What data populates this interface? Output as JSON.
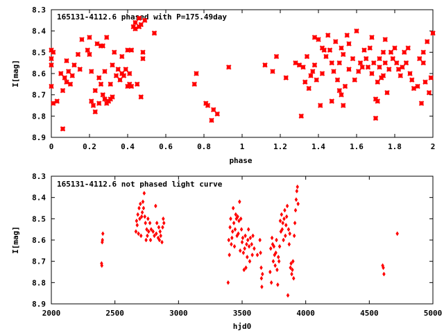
{
  "colors": {
    "points": "#ff0000",
    "axes": "#000000",
    "background": "#ffffff"
  },
  "chart_data": [
    {
      "type": "scatter",
      "title": "165131-4112.6 phased with P=175.49day",
      "xlabel": "phase",
      "ylabel": "I[mag]",
      "xlim": [
        0,
        2
      ],
      "ylim": [
        8.3,
        8.9
      ],
      "y_inverted": true,
      "grid": false,
      "legend": "none",
      "marker": "star",
      "x_ticks": [
        "0",
        "0.2",
        "0.4",
        "0.6",
        "0.8",
        "1",
        "1.2",
        "1.4",
        "1.6",
        "1.8",
        "2"
      ],
      "y_ticks": [
        "8.3",
        "8.4",
        "8.5",
        "8.6",
        "8.7",
        "8.8",
        "8.9"
      ],
      "points": [
        [
          0.0,
          8.49
        ],
        [
          0.0,
          8.53
        ],
        [
          0.0,
          8.56
        ],
        [
          0.0,
          8.66
        ],
        [
          0.01,
          8.5
        ],
        [
          0.01,
          8.74
        ],
        [
          0.03,
          8.73
        ],
        [
          0.05,
          8.6
        ],
        [
          0.06,
          8.86
        ],
        [
          0.06,
          8.68
        ],
        [
          0.07,
          8.62
        ],
        [
          0.08,
          8.54
        ],
        [
          0.08,
          8.64
        ],
        [
          0.09,
          8.59
        ],
        [
          0.1,
          8.65
        ],
        [
          0.11,
          8.61
        ],
        [
          0.12,
          8.56
        ],
        [
          0.14,
          8.51
        ],
        [
          0.15,
          8.58
        ],
        [
          0.16,
          8.44
        ],
        [
          0.19,
          8.49
        ],
        [
          0.2,
          8.43
        ],
        [
          0.2,
          8.51
        ],
        [
          0.21,
          8.59
        ],
        [
          0.21,
          8.73
        ],
        [
          0.22,
          8.75
        ],
        [
          0.23,
          8.68
        ],
        [
          0.23,
          8.78
        ],
        [
          0.24,
          8.46
        ],
        [
          0.25,
          8.74
        ],
        [
          0.25,
          8.62
        ],
        [
          0.26,
          8.47
        ],
        [
          0.26,
          8.65
        ],
        [
          0.27,
          8.47
        ],
        [
          0.27,
          8.7
        ],
        [
          0.28,
          8.72
        ],
        [
          0.28,
          8.59
        ],
        [
          0.29,
          8.74
        ],
        [
          0.29,
          8.43
        ],
        [
          0.3,
          8.73
        ],
        [
          0.31,
          8.72
        ],
        [
          0.31,
          8.65
        ],
        [
          0.32,
          8.71
        ],
        [
          0.32,
          8.56
        ],
        [
          0.33,
          8.5
        ],
        [
          0.34,
          8.61
        ],
        [
          0.35,
          8.58
        ],
        [
          0.36,
          8.63
        ],
        [
          0.37,
          8.6
        ],
        [
          0.37,
          8.52
        ],
        [
          0.38,
          8.61
        ],
        [
          0.39,
          8.58
        ],
        [
          0.4,
          8.66
        ],
        [
          0.4,
          8.49
        ],
        [
          0.41,
          8.65
        ],
        [
          0.41,
          8.6
        ],
        [
          0.42,
          8.66
        ],
        [
          0.42,
          8.49
        ],
        [
          0.43,
          8.38
        ],
        [
          0.44,
          8.39
        ],
        [
          0.44,
          8.36
        ],
        [
          0.45,
          8.65
        ],
        [
          0.46,
          8.38
        ],
        [
          0.46,
          8.34
        ],
        [
          0.47,
          8.37
        ],
        [
          0.47,
          8.71
        ],
        [
          0.48,
          8.5
        ],
        [
          0.48,
          8.53
        ],
        [
          0.49,
          8.35
        ],
        [
          0.54,
          8.41
        ],
        [
          0.75,
          8.65
        ],
        [
          0.76,
          8.6
        ],
        [
          0.81,
          8.74
        ],
        [
          0.82,
          8.75
        ],
        [
          0.84,
          8.82
        ],
        [
          0.85,
          8.77
        ],
        [
          0.87,
          8.79
        ],
        [
          0.93,
          8.57
        ],
        [
          1.12,
          8.56
        ],
        [
          1.16,
          8.59
        ],
        [
          1.18,
          8.52
        ],
        [
          1.23,
          8.62
        ],
        [
          1.28,
          8.55
        ],
        [
          1.3,
          8.56
        ],
        [
          1.31,
          8.8
        ],
        [
          1.32,
          8.57
        ],
        [
          1.33,
          8.64
        ],
        [
          1.34,
          8.52
        ],
        [
          1.35,
          8.67
        ],
        [
          1.36,
          8.61
        ],
        [
          1.37,
          8.59
        ],
        [
          1.38,
          8.43
        ],
        [
          1.38,
          8.56
        ],
        [
          1.39,
          8.63
        ],
        [
          1.4,
          8.44
        ],
        [
          1.41,
          8.75
        ],
        [
          1.42,
          8.48
        ],
        [
          1.42,
          8.6
        ],
        [
          1.43,
          8.49
        ],
        [
          1.44,
          8.52
        ],
        [
          1.45,
          8.42
        ],
        [
          1.46,
          8.49
        ],
        [
          1.47,
          8.73
        ],
        [
          1.47,
          8.55
        ],
        [
          1.48,
          8.59
        ],
        [
          1.49,
          8.45
        ],
        [
          1.5,
          8.63
        ],
        [
          1.51,
          8.68
        ],
        [
          1.51,
          8.55
        ],
        [
          1.52,
          8.7
        ],
        [
          1.52,
          8.48
        ],
        [
          1.53,
          8.75
        ],
        [
          1.53,
          8.51
        ],
        [
          1.54,
          8.66
        ],
        [
          1.55,
          8.42
        ],
        [
          1.56,
          8.46
        ],
        [
          1.56,
          8.58
        ],
        [
          1.58,
          8.53
        ],
        [
          1.59,
          8.63
        ],
        [
          1.6,
          8.4
        ],
        [
          1.61,
          8.59
        ],
        [
          1.62,
          8.55
        ],
        [
          1.63,
          8.57
        ],
        [
          1.64,
          8.49
        ],
        [
          1.65,
          8.53
        ],
        [
          1.66,
          8.57
        ],
        [
          1.67,
          8.48
        ],
        [
          1.68,
          8.43
        ],
        [
          1.68,
          8.6
        ],
        [
          1.69,
          8.55
        ],
        [
          1.7,
          8.72
        ],
        [
          1.7,
          8.81
        ],
        [
          1.71,
          8.73
        ],
        [
          1.71,
          8.64
        ],
        [
          1.72,
          8.57
        ],
        [
          1.72,
          8.53
        ],
        [
          1.73,
          8.62
        ],
        [
          1.74,
          8.61
        ],
        [
          1.74,
          8.5
        ],
        [
          1.75,
          8.44
        ],
        [
          1.75,
          8.55
        ],
        [
          1.76,
          8.69
        ],
        [
          1.77,
          8.58
        ],
        [
          1.78,
          8.5
        ],
        [
          1.79,
          8.53
        ],
        [
          1.8,
          8.48
        ],
        [
          1.81,
          8.55
        ],
        [
          1.82,
          8.58
        ],
        [
          1.83,
          8.61
        ],
        [
          1.84,
          8.57
        ],
        [
          1.85,
          8.5
        ],
        [
          1.86,
          8.55
        ],
        [
          1.87,
          8.48
        ],
        [
          1.88,
          8.6
        ],
        [
          1.89,
          8.63
        ],
        [
          1.9,
          8.67
        ],
        [
          1.92,
          8.66
        ],
        [
          1.93,
          8.53
        ],
        [
          1.94,
          8.74
        ],
        [
          1.95,
          8.5
        ],
        [
          1.95,
          8.55
        ],
        [
          1.96,
          8.64
        ],
        [
          1.97,
          8.45
        ],
        [
          1.98,
          8.69
        ],
        [
          1.99,
          8.62
        ],
        [
          2.0,
          8.41
        ]
      ]
    },
    {
      "type": "scatter",
      "title": "165131-4112.6 not phased light curve",
      "xlabel": "hjd0",
      "ylabel": "I[mag]",
      "xlim": [
        2000,
        5000
      ],
      "ylim": [
        8.3,
        8.9
      ],
      "y_inverted": true,
      "grid": false,
      "legend": "none",
      "marker": "diamond",
      "x_ticks": [
        "2000",
        "2500",
        "3000",
        "3500",
        "4000",
        "4500",
        "5000"
      ],
      "y_ticks": [
        "8.3",
        "8.4",
        "8.5",
        "8.6",
        "8.7",
        "8.8",
        "8.9"
      ],
      "points": [
        [
          2395,
          8.71
        ],
        [
          2397,
          8.72
        ],
        [
          2400,
          8.61
        ],
        [
          2402,
          8.6
        ],
        [
          2405,
          8.57
        ],
        [
          2665,
          8.56
        ],
        [
          2670,
          8.51
        ],
        [
          2675,
          8.53
        ],
        [
          2680,
          8.48
        ],
        [
          2685,
          8.57
        ],
        [
          2690,
          8.45
        ],
        [
          2695,
          8.5
        ],
        [
          2700,
          8.43
        ],
        [
          2705,
          8.58
        ],
        [
          2710,
          8.49
        ],
        [
          2715,
          8.47
        ],
        [
          2720,
          8.42
        ],
        [
          2725,
          8.45
        ],
        [
          2730,
          8.38
        ],
        [
          2735,
          8.49
        ],
        [
          2740,
          8.52
        ],
        [
          2745,
          8.6
        ],
        [
          2750,
          8.55
        ],
        [
          2755,
          8.58
        ],
        [
          2760,
          8.5
        ],
        [
          2765,
          8.56
        ],
        [
          2775,
          8.52
        ],
        [
          2780,
          8.6
        ],
        [
          2785,
          8.55
        ],
        [
          2800,
          8.56
        ],
        [
          2810,
          8.58
        ],
        [
          2820,
          8.44
        ],
        [
          2825,
          8.57
        ],
        [
          2830,
          8.52
        ],
        [
          2840,
          8.59
        ],
        [
          2845,
          8.54
        ],
        [
          2850,
          8.6
        ],
        [
          2855,
          8.56
        ],
        [
          2860,
          8.58
        ],
        [
          2870,
          8.61
        ],
        [
          2875,
          8.54
        ],
        [
          2880,
          8.5
        ],
        [
          2885,
          8.52
        ],
        [
          3390,
          8.8
        ],
        [
          3395,
          8.6
        ],
        [
          3400,
          8.67
        ],
        [
          3405,
          8.54
        ],
        [
          3410,
          8.5
        ],
        [
          3415,
          8.62
        ],
        [
          3420,
          8.59
        ],
        [
          3425,
          8.56
        ],
        [
          3430,
          8.45
        ],
        [
          3435,
          8.52
        ],
        [
          3440,
          8.63
        ],
        [
          3445,
          8.55
        ],
        [
          3450,
          8.48
        ],
        [
          3455,
          8.5
        ],
        [
          3460,
          8.58
        ],
        [
          3465,
          8.49
        ],
        [
          3470,
          8.57
        ],
        [
          3475,
          8.51
        ],
        [
          3480,
          8.42
        ],
        [
          3485,
          8.65
        ],
        [
          3490,
          8.5
        ],
        [
          3495,
          8.55
        ],
        [
          3500,
          8.61
        ],
        [
          3505,
          8.59
        ],
        [
          3510,
          8.66
        ],
        [
          3515,
          8.74
        ],
        [
          3520,
          8.64
        ],
        [
          3525,
          8.58
        ],
        [
          3530,
          8.73
        ],
        [
          3535,
          8.62
        ],
        [
          3540,
          8.68
        ],
        [
          3545,
          8.6
        ],
        [
          3550,
          8.55
        ],
        [
          3555,
          8.63
        ],
        [
          3560,
          8.7
        ],
        [
          3565,
          8.59
        ],
        [
          3575,
          8.62
        ],
        [
          3580,
          8.67
        ],
        [
          3585,
          8.58
        ],
        [
          3595,
          8.64
        ],
        [
          3620,
          8.67
        ],
        [
          3640,
          8.6
        ],
        [
          3645,
          8.66
        ],
        [
          3650,
          8.73
        ],
        [
          3652,
          8.78
        ],
        [
          3655,
          8.82
        ],
        [
          3660,
          8.76
        ],
        [
          3720,
          8.75
        ],
        [
          3725,
          8.64
        ],
        [
          3730,
          8.8
        ],
        [
          3735,
          8.59
        ],
        [
          3740,
          8.62
        ],
        [
          3745,
          8.7
        ],
        [
          3750,
          8.63
        ],
        [
          3755,
          8.67
        ],
        [
          3760,
          8.72
        ],
        [
          3765,
          8.66
        ],
        [
          3770,
          8.6
        ],
        [
          3775,
          8.74
        ],
        [
          3780,
          8.81
        ],
        [
          3785,
          8.68
        ],
        [
          3790,
          8.7
        ],
        [
          3795,
          8.63
        ],
        [
          3800,
          8.51
        ],
        [
          3805,
          8.56
        ],
        [
          3810,
          8.48
        ],
        [
          3815,
          8.55
        ],
        [
          3820,
          8.52
        ],
        [
          3825,
          8.6
        ],
        [
          3830,
          8.5
        ],
        [
          3835,
          8.46
        ],
        [
          3840,
          8.58
        ],
        [
          3845,
          8.53
        ],
        [
          3850,
          8.49
        ],
        [
          3855,
          8.44
        ],
        [
          3860,
          8.86
        ],
        [
          3865,
          8.55
        ],
        [
          3870,
          8.62
        ],
        [
          3875,
          8.57
        ],
        [
          3880,
          8.73
        ],
        [
          3885,
          8.71
        ],
        [
          3890,
          8.76
        ],
        [
          3895,
          8.74
        ],
        [
          3900,
          8.7
        ],
        [
          3905,
          8.78
        ],
        [
          3910,
          8.58
        ],
        [
          3915,
          8.52
        ],
        [
          3920,
          8.46
        ],
        [
          3925,
          8.41
        ],
        [
          3930,
          8.37
        ],
        [
          3935,
          8.35
        ],
        [
          3940,
          8.43
        ],
        [
          4605,
          8.72
        ],
        [
          4610,
          8.73
        ],
        [
          4615,
          8.76
        ],
        [
          4720,
          8.57
        ]
      ]
    }
  ]
}
